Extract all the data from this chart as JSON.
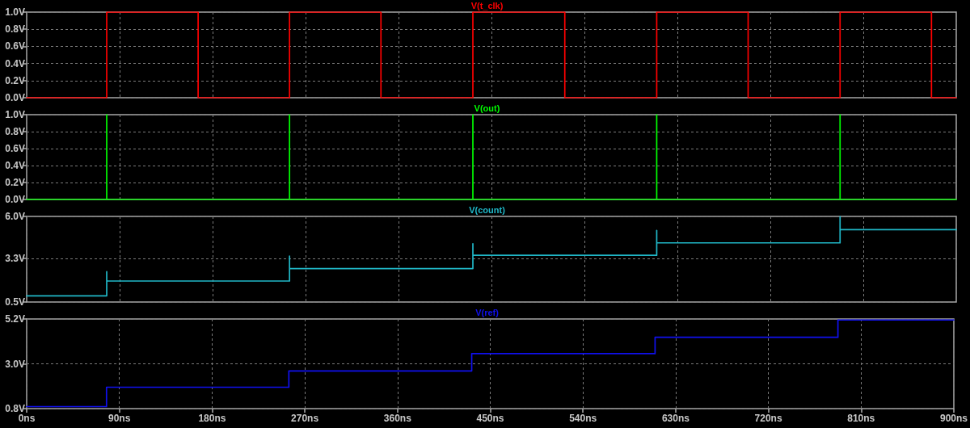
{
  "chart_data": [
    {
      "type": "line",
      "x": [
        0,
        77.5,
        77.5,
        166,
        166,
        254.5,
        254.5,
        343,
        343,
        432,
        432,
        521,
        521,
        610,
        610,
        698.5,
        698.5,
        787.5,
        787.5,
        876,
        876,
        900
      ],
      "series": [
        {
          "name": "V(t_clk)",
          "color": "#ff0000",
          "values": [
            0,
            0,
            1,
            1,
            0,
            0,
            1,
            1,
            0,
            0,
            1,
            1,
            0,
            0,
            1,
            1,
            0,
            0,
            1,
            1,
            0,
            0
          ]
        }
      ],
      "xlim": [
        0,
        900
      ],
      "xticks": [
        0,
        90,
        180,
        270,
        360,
        450,
        540,
        630,
        720,
        810,
        900
      ],
      "ylim": [
        0,
        1
      ],
      "yticks": [
        {
          "value": 0,
          "label": "0.0V"
        },
        {
          "value": 0.2,
          "label": "0.2V"
        },
        {
          "value": 0.4,
          "label": "0.4V"
        },
        {
          "value": 0.6,
          "label": "0.6V"
        },
        {
          "value": 0.8,
          "label": "0.8V"
        },
        {
          "value": 1,
          "label": "1.0V"
        }
      ],
      "grid": true,
      "legend": "top",
      "tick_labels": "y"
    },
    {
      "type": "line",
      "x": [
        0,
        77.5,
        77.5,
        77.5,
        254.5,
        254.5,
        254.5,
        432,
        432,
        432,
        610,
        610,
        610,
        787.5,
        787.5,
        787.5,
        900
      ],
      "series": [
        {
          "name": "V(out)",
          "color": "#00ff00",
          "values": [
            0,
            0,
            1,
            0,
            0,
            1,
            0,
            0,
            1,
            0,
            0,
            1,
            0,
            0,
            1,
            0,
            0
          ]
        }
      ],
      "xlim": [
        0,
        900
      ],
      "xticks": [
        0,
        90,
        180,
        270,
        360,
        450,
        540,
        630,
        720,
        810,
        900
      ],
      "ylim": [
        0,
        1
      ],
      "yticks": [
        {
          "value": 0,
          "label": "0.0V"
        },
        {
          "value": 0.2,
          "label": "0.2V"
        },
        {
          "value": 0.4,
          "label": "0.4V"
        },
        {
          "value": 0.6,
          "label": "0.6V"
        },
        {
          "value": 0.8,
          "label": "0.8V"
        },
        {
          "value": 1,
          "label": "1.0V"
        }
      ],
      "grid": true,
      "legend": "top",
      "tick_labels": "y"
    },
    {
      "type": "line",
      "x": [
        0,
        77.5,
        77.5,
        77.5,
        254.5,
        254.5,
        254.5,
        432,
        432,
        432,
        610,
        610,
        610,
        787.5,
        787.5,
        787.5,
        900
      ],
      "series": [
        {
          "name": "V(count)",
          "color": "#20b8c8",
          "values": [
            0.9,
            0.9,
            2.45,
            1.85,
            1.85,
            3.45,
            2.65,
            2.65,
            4.25,
            3.5,
            3.5,
            5.1,
            4.3,
            4.3,
            6.0,
            5.15,
            5.15
          ]
        }
      ],
      "xlim": [
        0,
        900
      ],
      "xticks": [
        0,
        90,
        180,
        270,
        360,
        450,
        540,
        630,
        720,
        810,
        900
      ],
      "ylim": [
        0.5,
        6.0
      ],
      "yticks": [
        {
          "value": 0.5,
          "label": "0.5V"
        },
        {
          "value": 3.3,
          "label": "3.3V"
        },
        {
          "value": 6.0,
          "label": "6.0V"
        }
      ],
      "grid": true,
      "legend": "top",
      "tick_labels": "y"
    },
    {
      "type": "line",
      "x": [
        0,
        77.5,
        77.5,
        254.5,
        254.5,
        432,
        432,
        610,
        610,
        787.5,
        787.5,
        900
      ],
      "series": [
        {
          "name": "V(ref)",
          "color": "#1010ee",
          "values": [
            0.9,
            0.9,
            1.85,
            1.85,
            2.65,
            2.65,
            3.5,
            3.5,
            4.3,
            4.3,
            5.15,
            5.15
          ]
        }
      ],
      "xlim": [
        0,
        900
      ],
      "xticks": [
        {
          "value": 0,
          "label": "0ns"
        },
        {
          "value": 90,
          "label": "90ns"
        },
        {
          "value": 180,
          "label": "180ns"
        },
        {
          "value": 270,
          "label": "270ns"
        },
        {
          "value": 360,
          "label": "360ns"
        },
        {
          "value": 450,
          "label": "450ns"
        },
        {
          "value": 540,
          "label": "540ns"
        },
        {
          "value": 630,
          "label": "630ns"
        },
        {
          "value": 720,
          "label": "720ns"
        },
        {
          "value": 810,
          "label": "810ns"
        },
        {
          "value": 900,
          "label": "900ns"
        }
      ],
      "ylim": [
        0.8,
        5.2
      ],
      "yticks": [
        {
          "value": 0.8,
          "label": "0.8V"
        },
        {
          "value": 3.0,
          "label": "3.0V"
        },
        {
          "value": 5.2,
          "label": "5.2V"
        }
      ],
      "grid": true,
      "legend": "top"
    }
  ]
}
